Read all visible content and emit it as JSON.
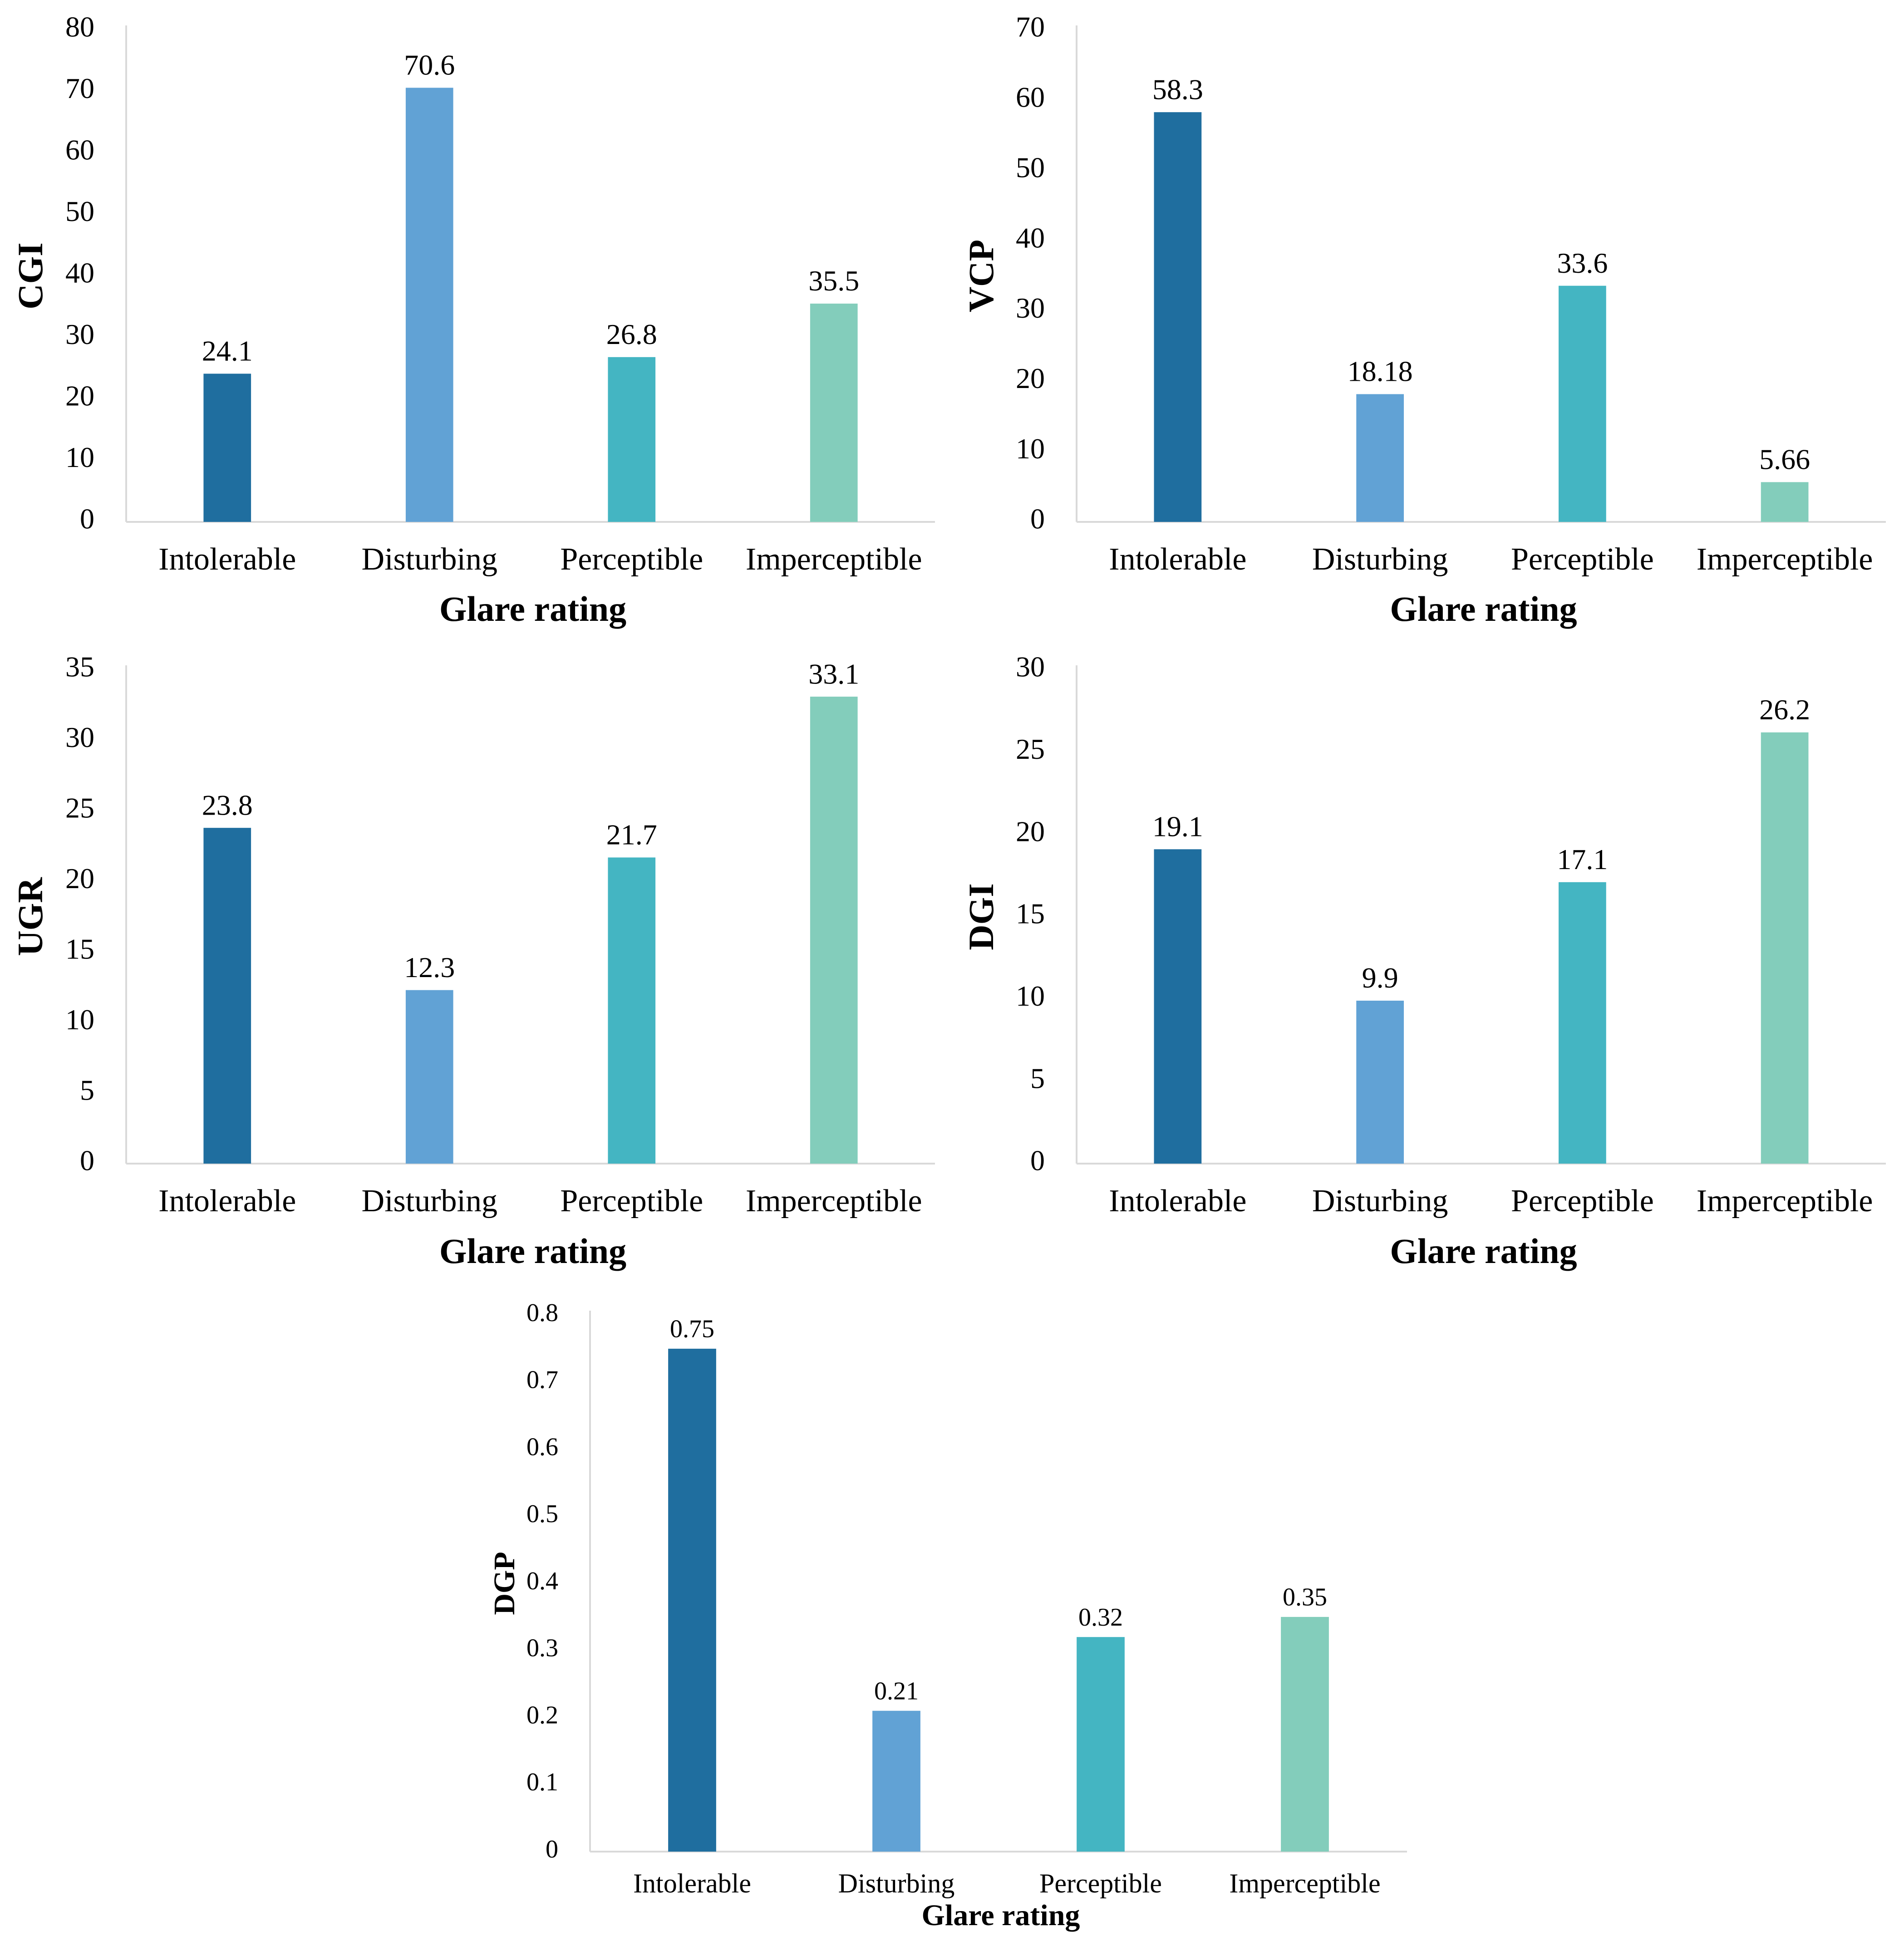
{
  "colors": {
    "intolerable": "#1f6e9f",
    "disturbing": "#61a2d5",
    "perceptible": "#44b5c2",
    "imperceptible": "#83cdbb",
    "axis": "#d9d9d9"
  },
  "chart_data": [
    {
      "type": "bar",
      "title": "",
      "xlabel": "Glare rating",
      "ylabel": "CGI",
      "categories": [
        "Intolerable",
        "Disturbing",
        "Perceptible",
        "Imperceptible"
      ],
      "values": [
        24.1,
        70.6,
        26.8,
        35.5
      ],
      "value_labels": [
        "24.1",
        "70.6",
        "26.8",
        "35.5"
      ],
      "ylim": [
        0,
        80
      ],
      "yticks": [
        0,
        10,
        20,
        30,
        40,
        50,
        60,
        70,
        80
      ],
      "ytick_labels": [
        "0",
        "10",
        "20",
        "30",
        "40",
        "50",
        "60",
        "70",
        "80"
      ],
      "grid": false,
      "legend": "none"
    },
    {
      "type": "bar",
      "title": "",
      "xlabel": "Glare rating",
      "ylabel": "VCP",
      "categories": [
        "Intolerable",
        "Disturbing",
        "Perceptible",
        "Imperceptible"
      ],
      "values": [
        58.3,
        18.18,
        33.6,
        5.66
      ],
      "value_labels": [
        "58.3",
        "18.18",
        "33.6",
        "5.66"
      ],
      "ylim": [
        0,
        70
      ],
      "yticks": [
        0,
        10,
        20,
        30,
        40,
        50,
        60,
        70
      ],
      "ytick_labels": [
        "0",
        "10",
        "20",
        "30",
        "40",
        "50",
        "60",
        "70"
      ],
      "grid": false,
      "legend": "none"
    },
    {
      "type": "bar",
      "title": "",
      "xlabel": "Glare rating",
      "ylabel": "UGR",
      "categories": [
        "Intolerable",
        "Disturbing",
        "Perceptible",
        "Imperceptible"
      ],
      "values": [
        23.8,
        12.3,
        21.7,
        33.1
      ],
      "value_labels": [
        "23.8",
        "12.3",
        "21.7",
        "33.1"
      ],
      "ylim": [
        0,
        35
      ],
      "yticks": [
        0,
        5,
        10,
        15,
        20,
        25,
        30,
        35
      ],
      "ytick_labels": [
        "0",
        "5",
        "10",
        "15",
        "20",
        "25",
        "30",
        "35"
      ],
      "grid": false,
      "legend": "none"
    },
    {
      "type": "bar",
      "title": "",
      "xlabel": "Glare rating",
      "ylabel": "DGI",
      "categories": [
        "Intolerable",
        "Disturbing",
        "Perceptible",
        "Imperceptible"
      ],
      "values": [
        19.1,
        9.9,
        17.1,
        26.2
      ],
      "value_labels": [
        "19.1",
        "9.9",
        "17.1",
        "26.2"
      ],
      "ylim": [
        0,
        30
      ],
      "yticks": [
        0,
        5,
        10,
        15,
        20,
        25,
        30
      ],
      "ytick_labels": [
        "0",
        "5",
        "10",
        "15",
        "20",
        "25",
        "30"
      ],
      "grid": false,
      "legend": "none"
    },
    {
      "type": "bar",
      "title": "",
      "xlabel": "Glare rating",
      "ylabel": "DGP",
      "categories": [
        "Intolerable",
        "Disturbing",
        "Perceptible",
        "Imperceptible"
      ],
      "values": [
        0.75,
        0.21,
        0.32,
        0.35
      ],
      "value_labels": [
        "0.75",
        "0.21",
        "0.32",
        "0.35"
      ],
      "ylim": [
        0,
        0.8
      ],
      "yticks": [
        0,
        0.1,
        0.2,
        0.3,
        0.4,
        0.5,
        0.6,
        0.7,
        0.8
      ],
      "ytick_labels": [
        "0",
        "0.1",
        "0.2",
        "0.3",
        "0.4",
        "0.5",
        "0.6",
        "0.7",
        "0.8"
      ],
      "grid": false,
      "legend": "none"
    }
  ]
}
